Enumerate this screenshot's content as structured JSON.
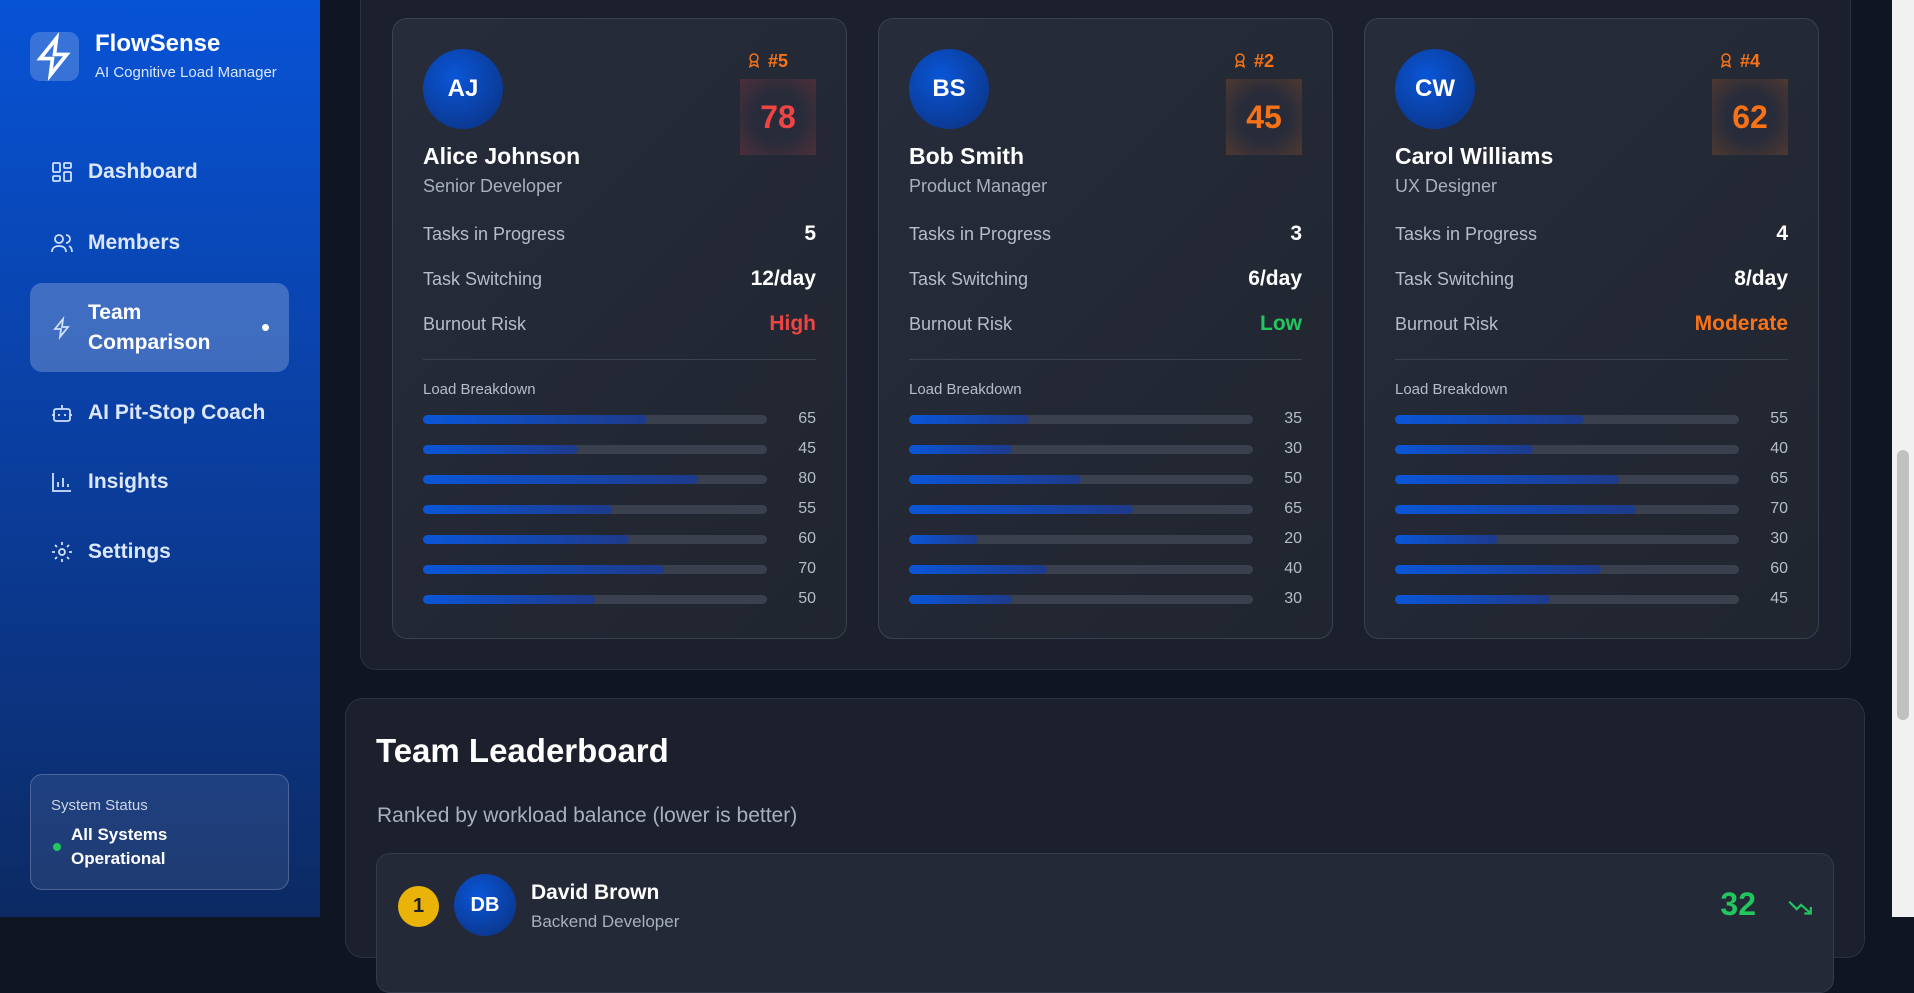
{
  "sidebar": {
    "brand": "FlowSense",
    "tagline": "AI Cognitive Load Manager",
    "nav": [
      "Dashboard",
      "Members",
      "Team Comparison",
      "AI Pit-Stop Coach",
      "Insights",
      "Settings"
    ],
    "status": {
      "label": "System Status",
      "text": "All Systems Operational"
    }
  },
  "comparison": {
    "members": [
      {
        "initials": "AJ",
        "rank": "#5",
        "score": 78,
        "score_color": "#ef4444",
        "name": "Alice Johnson",
        "role": "Senior Developer",
        "stats": [
          {
            "label": "Tasks in Progress",
            "value": 5
          },
          {
            "label": "Task Switching",
            "value": "12/day"
          },
          {
            "label": "Burnout Risk",
            "value": "High",
            "color": "#ef4444"
          }
        ],
        "load_label": "Load Breakdown",
        "load": [
          65,
          45,
          80,
          55,
          60,
          70,
          50
        ]
      },
      {
        "initials": "BS",
        "rank": "#2",
        "score": 45,
        "score_color": "#f97316",
        "name": "Bob Smith",
        "role": "Product Manager",
        "stats": [
          {
            "label": "Tasks in Progress",
            "value": 3
          },
          {
            "label": "Task Switching",
            "value": "6/day"
          },
          {
            "label": "Burnout Risk",
            "value": "Low",
            "color": "#22c55e"
          }
        ],
        "load_label": "Load Breakdown",
        "load": [
          35,
          30,
          50,
          65,
          20,
          40,
          30
        ]
      },
      {
        "initials": "CW",
        "rank": "#4",
        "score": 62,
        "score_color": "#f97316",
        "name": "Carol Williams",
        "role": "UX Designer",
        "stats": [
          {
            "label": "Tasks in Progress",
            "value": 4
          },
          {
            "label": "Task Switching",
            "value": "8/day"
          },
          {
            "label": "Burnout Risk",
            "value": "Moderate",
            "color": "#f97316"
          }
        ],
        "load_label": "Load Breakdown",
        "load": [
          55,
          40,
          65,
          70,
          30,
          60,
          45
        ]
      }
    ]
  },
  "leaderboard": {
    "title": "Team Leaderboard",
    "subtitle": "Ranked by workload balance (lower is better)",
    "rows": [
      {
        "rank": 1,
        "initials": "DB",
        "name": "David Brown",
        "role": "Backend Developer",
        "score": 32,
        "score_color": "#22c55e"
      }
    ]
  }
}
